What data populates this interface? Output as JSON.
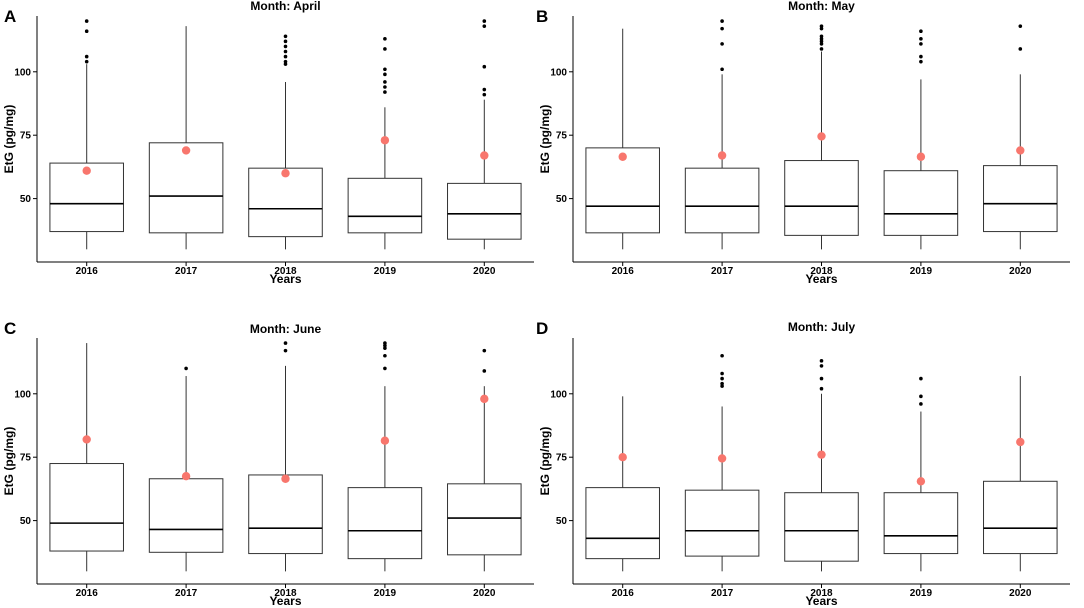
{
  "colors": {
    "mean": "#F8766D",
    "outlier": "#000000",
    "box_fill": "#FFFFFF"
  },
  "chart_data": [
    {
      "label": "A",
      "title": "Month: April",
      "type": "box",
      "xlabel": "Years",
      "ylabel": "EtG (pg/mg)",
      "ylim": [
        25,
        122
      ],
      "yticks": [
        50,
        75,
        100
      ],
      "categories": [
        "2016",
        "2017",
        "2018",
        "2019",
        "2020"
      ],
      "boxes": [
        {
          "year": "2016",
          "low": 30,
          "q1": 37,
          "median": 48,
          "q3": 64,
          "high": 103,
          "mean": 61,
          "outliers": [
            104,
            106,
            116,
            120
          ]
        },
        {
          "year": "2017",
          "low": 30,
          "q1": 36.5,
          "median": 51,
          "q3": 72,
          "high": 118,
          "mean": 69,
          "outliers": []
        },
        {
          "year": "2018",
          "low": 30,
          "q1": 35,
          "median": 46,
          "q3": 62,
          "high": 96,
          "mean": 60,
          "outliers": [
            103,
            104,
            106,
            108,
            110,
            112,
            114
          ]
        },
        {
          "year": "2019",
          "low": 30,
          "q1": 36.5,
          "median": 43,
          "q3": 58,
          "high": 86,
          "mean": 73,
          "outliers": [
            92,
            94,
            96,
            99,
            101,
            109,
            113
          ]
        },
        {
          "year": "2020",
          "low": 30,
          "q1": 34,
          "median": 44,
          "q3": 56,
          "high": 89,
          "mean": 67,
          "outliers": [
            91,
            93,
            102,
            118,
            120
          ]
        }
      ]
    },
    {
      "label": "B",
      "title": "Month: May",
      "type": "box",
      "xlabel": "Years",
      "ylabel": "EtG (pg/mg)",
      "ylim": [
        25,
        122
      ],
      "yticks": [
        50,
        75,
        100
      ],
      "categories": [
        "2016",
        "2017",
        "2018",
        "2019",
        "2020"
      ],
      "boxes": [
        {
          "year": "2016",
          "low": 30,
          "q1": 36.5,
          "median": 47,
          "q3": 70,
          "high": 117,
          "mean": 66.5,
          "outliers": []
        },
        {
          "year": "2017",
          "low": 30,
          "q1": 36.5,
          "median": 47,
          "q3": 62,
          "high": 99,
          "mean": 67,
          "outliers": [
            101,
            111,
            117,
            120
          ]
        },
        {
          "year": "2018",
          "low": 30,
          "q1": 35.5,
          "median": 47,
          "q3": 65,
          "high": 108,
          "mean": 74.5,
          "outliers": [
            109,
            111,
            112,
            113,
            114,
            117,
            118
          ]
        },
        {
          "year": "2019",
          "low": 30,
          "q1": 35.5,
          "median": 44,
          "q3": 61,
          "high": 97,
          "mean": 66.5,
          "outliers": [
            104,
            106,
            111,
            113,
            116
          ]
        },
        {
          "year": "2020",
          "low": 30,
          "q1": 37,
          "median": 48,
          "q3": 63,
          "high": 99,
          "mean": 69,
          "outliers": [
            109,
            118
          ]
        }
      ]
    },
    {
      "label": "C",
      "title": "Month: June",
      "type": "box",
      "xlabel": "Years",
      "ylabel": "EtG (pg/mg)",
      "ylim": [
        25,
        122
      ],
      "yticks": [
        50,
        75,
        100
      ],
      "categories": [
        "2016",
        "2017",
        "2018",
        "2019",
        "2020"
      ],
      "boxes": [
        {
          "year": "2016",
          "low": 30,
          "q1": 38,
          "median": 49,
          "q3": 72.5,
          "high": 120,
          "mean": 82,
          "outliers": []
        },
        {
          "year": "2017",
          "low": 30,
          "q1": 37.5,
          "median": 46.5,
          "q3": 66.5,
          "high": 107,
          "mean": 67.5,
          "outliers": [
            110
          ]
        },
        {
          "year": "2018",
          "low": 30,
          "q1": 37,
          "median": 47,
          "q3": 68,
          "high": 111,
          "mean": 66.5,
          "outliers": [
            117,
            120
          ]
        },
        {
          "year": "2019",
          "low": 30,
          "q1": 35,
          "median": 46,
          "q3": 63,
          "high": 103,
          "mean": 81.5,
          "outliers": [
            110,
            115,
            118,
            119,
            120
          ]
        },
        {
          "year": "2020",
          "low": 30,
          "q1": 36.5,
          "median": 51,
          "q3": 64.5,
          "high": 103,
          "mean": 98,
          "outliers": [
            109,
            117
          ]
        }
      ]
    },
    {
      "label": "D",
      "title": "Month: July",
      "type": "box",
      "xlabel": "Years",
      "ylabel": "EtG (pg/mg)",
      "ylim": [
        25,
        122
      ],
      "yticks": [
        50,
        75,
        100
      ],
      "categories": [
        "2016",
        "2017",
        "2018",
        "2019",
        "2020"
      ],
      "boxes": [
        {
          "year": "2016",
          "low": 30,
          "q1": 35,
          "median": 43,
          "q3": 63,
          "high": 99,
          "mean": 75,
          "outliers": []
        },
        {
          "year": "2017",
          "low": 30,
          "q1": 36,
          "median": 46,
          "q3": 62,
          "high": 95,
          "mean": 74.5,
          "outliers": [
            103,
            104,
            106,
            108,
            115
          ]
        },
        {
          "year": "2018",
          "low": 30,
          "q1": 34,
          "median": 46,
          "q3": 61,
          "high": 100,
          "mean": 76,
          "outliers": [
            102,
            106,
            111,
            113
          ]
        },
        {
          "year": "2019",
          "low": 30,
          "q1": 37,
          "median": 44,
          "q3": 61,
          "high": 93,
          "mean": 65.5,
          "outliers": [
            96,
            99,
            106
          ]
        },
        {
          "year": "2020",
          "low": 30,
          "q1": 37,
          "median": 47,
          "q3": 65.5,
          "high": 107,
          "mean": 81,
          "outliers": []
        }
      ]
    }
  ]
}
